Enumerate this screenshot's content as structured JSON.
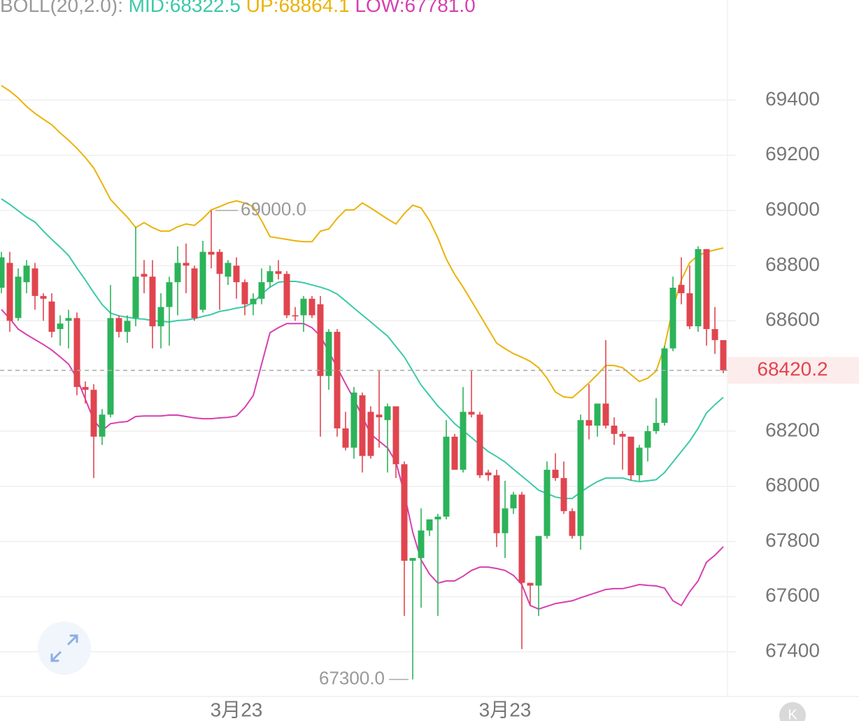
{
  "chart_data": {
    "type": "candlestick",
    "indicator": {
      "title": "BOLL(20,2.0):",
      "items": [
        {
          "text": "MID:68322.5",
          "color": "#3cc9a8"
        },
        {
          "text": "UP:68864.1",
          "color": "#eab308"
        },
        {
          "text": "LOW:67781.0",
          "color": "#d63fb0"
        }
      ]
    },
    "ylim": [
      67238,
      69763
    ],
    "yticks": [
      67400,
      67600,
      67800,
      68000,
      68200,
      68400,
      68600,
      68800,
      69000,
      69200,
      69400
    ],
    "grid": true,
    "up_color": "#2cb35a",
    "down_color": "#e0454f",
    "categories": [
      null,
      null,
      null,
      null,
      null,
      null,
      null,
      null,
      null,
      null,
      null,
      null,
      null,
      null,
      null,
      null,
      null,
      null,
      null,
      null,
      null,
      null,
      null,
      null,
      null,
      null,
      null,
      null,
      "3月23",
      null,
      null,
      null,
      null,
      null,
      null,
      null,
      null,
      null,
      null,
      null,
      null,
      null,
      null,
      null,
      null,
      null,
      null,
      null,
      null,
      null,
      null,
      null,
      null,
      null,
      null,
      null,
      null,
      null,
      null,
      null,
      "3月23",
      null,
      null,
      null,
      null,
      null,
      null,
      null,
      null,
      null,
      null,
      null,
      null,
      null,
      null,
      null,
      null,
      null,
      null,
      null,
      null,
      null,
      null,
      null,
      null,
      null,
      null
    ],
    "ohlc": [
      [
        68720,
        68850,
        68700,
        68830
      ],
      [
        68810,
        68850,
        68560,
        68600
      ],
      [
        68610,
        68790,
        68600,
        68760
      ],
      [
        68740,
        68820,
        68700,
        68800
      ],
      [
        68790,
        68810,
        68640,
        68690
      ],
      [
        68690,
        68700,
        68600,
        68680
      ],
      [
        68670,
        68700,
        68540,
        68560
      ],
      [
        68570,
        68620,
        68510,
        68590
      ],
      [
        68600,
        68640,
        68500,
        68610
      ],
      [
        68610,
        68630,
        68330,
        68360
      ],
      [
        68360,
        68380,
        68300,
        68350
      ],
      [
        68350,
        68370,
        68030,
        68180
      ],
      [
        68180,
        68280,
        68150,
        68260
      ],
      [
        68260,
        68730,
        68250,
        68610
      ],
      [
        68610,
        68620,
        68540,
        68560
      ],
      [
        68560,
        68620,
        68520,
        68600
      ],
      [
        68610,
        68940,
        68580,
        68760
      ],
      [
        68770,
        68820,
        68700,
        68760
      ],
      [
        68760,
        68820,
        68500,
        68580
      ],
      [
        68580,
        68700,
        68500,
        68650
      ],
      [
        68650,
        68760,
        68510,
        68740
      ],
      [
        68740,
        68870,
        68620,
        68810
      ],
      [
        68810,
        68880,
        68700,
        68800
      ],
      [
        68790,
        68800,
        68600,
        68610
      ],
      [
        68640,
        68890,
        68630,
        68850
      ],
      [
        68850,
        69000,
        68790,
        68840
      ],
      [
        68850,
        68860,
        68640,
        68770
      ],
      [
        68760,
        68820,
        68730,
        68810
      ],
      [
        68800,
        68830,
        68680,
        68740
      ],
      [
        68740,
        68750,
        68620,
        68660
      ],
      [
        68660,
        68700,
        68620,
        68680
      ],
      [
        68680,
        68790,
        68660,
        68740
      ],
      [
        68740,
        68800,
        68720,
        68780
      ],
      [
        68780,
        68820,
        68750,
        68770
      ],
      [
        68770,
        68780,
        68610,
        68620
      ],
      [
        68620,
        68650,
        68600,
        68618
      ],
      [
        68620,
        68690,
        68560,
        68680
      ],
      [
        68680,
        68690,
        68610,
        68620
      ],
      [
        68660,
        68690,
        68180,
        68400
      ],
      [
        68400,
        68570,
        68350,
        68560
      ],
      [
        68560,
        68570,
        68180,
        68210
      ],
      [
        68210,
        68270,
        68130,
        68140
      ],
      [
        68140,
        68360,
        68100,
        68340
      ],
      [
        68330,
        68340,
        68050,
        68110
      ],
      [
        68270,
        68290,
        68100,
        68110
      ],
      [
        68260,
        68420,
        68140,
        68250
      ],
      [
        68240,
        68300,
        68050,
        68290
      ],
      [
        68290,
        68290,
        68030,
        68080
      ],
      [
        68080,
        68090,
        67530,
        67730
      ],
      [
        67730,
        67740,
        67300,
        67740
      ],
      [
        67740,
        67920,
        67560,
        67840
      ],
      [
        67840,
        67880,
        67820,
        67880
      ],
      [
        67880,
        67900,
        67530,
        67890
      ],
      [
        67890,
        68240,
        67880,
        68180
      ],
      [
        68180,
        68190,
        68060,
        68060
      ],
      [
        68060,
        68360,
        68050,
        68270
      ],
      [
        68270,
        68420,
        68250,
        68260
      ],
      [
        68260,
        68270,
        68030,
        68040
      ],
      [
        68050,
        68060,
        68020,
        68040
      ],
      [
        68040,
        68060,
        67780,
        67830
      ],
      [
        67830,
        68020,
        67740,
        67920
      ],
      [
        67920,
        67980,
        67900,
        67970
      ],
      [
        67970,
        67980,
        67410,
        67650
      ],
      [
        67650,
        67650,
        67570,
        67640
      ],
      [
        67640,
        67820,
        67530,
        67820
      ],
      [
        67820,
        68090,
        67810,
        68060
      ],
      [
        68060,
        68120,
        68020,
        68030
      ],
      [
        68030,
        68090,
        67900,
        67910
      ],
      [
        67910,
        67920,
        67810,
        67820
      ],
      [
        67820,
        68260,
        67770,
        68240
      ],
      [
        68240,
        68370,
        68170,
        68220
      ],
      [
        68220,
        68300,
        68180,
        68300
      ],
      [
        68300,
        68530,
        68210,
        68220
      ],
      [
        68220,
        68250,
        68150,
        68190
      ],
      [
        68190,
        68200,
        68060,
        68180
      ],
      [
        68180,
        68180,
        68020,
        68040
      ],
      [
        68040,
        68150,
        68020,
        68140
      ],
      [
        68140,
        68220,
        68090,
        68200
      ],
      [
        68200,
        68320,
        68190,
        68230
      ],
      [
        68230,
        68510,
        68220,
        68500
      ],
      [
        68500,
        68760,
        68490,
        68720
      ],
      [
        68730,
        68830,
        68660,
        68700
      ],
      [
        68700,
        68800,
        68570,
        68580
      ],
      [
        68580,
        68870,
        68560,
        68860
      ],
      [
        68860,
        68860,
        68510,
        68570
      ],
      [
        68570,
        68650,
        68480,
        68530
      ],
      [
        68530,
        68530,
        68410,
        68420.2
      ]
    ],
    "bands": [
      {
        "color": "#3cc9a8",
        "values": [
          69042,
          69022,
          68999,
          68976,
          68958,
          68925,
          68895,
          68867,
          68837,
          68791,
          68748,
          68702,
          68659,
          68628,
          68618,
          68613,
          68608,
          68606,
          68601,
          68598,
          68596,
          68601,
          68603,
          68608,
          68616,
          68623,
          68634,
          68639,
          68646,
          68651,
          68666,
          68697,
          68722,
          68740,
          68743,
          68743,
          68738,
          68730,
          68722,
          68712,
          68697,
          68672,
          68646,
          68621,
          68596,
          68570,
          68545,
          68507,
          68469,
          68418,
          68367,
          68329,
          68291,
          68260,
          68227,
          68202,
          68177,
          68151,
          68126,
          68108,
          68088,
          68062,
          68037,
          68012,
          67986,
          67974,
          67961,
          67956,
          67956,
          67979,
          67999,
          68017,
          68030,
          68030,
          68030,
          68022,
          68017,
          68020,
          68024,
          68050,
          68088,
          68126,
          68164,
          68210,
          68266,
          68296,
          68322.5
        ]
      },
      {
        "color": "#eab308",
        "values": [
          69453,
          69433,
          69408,
          69377,
          69352,
          69331,
          69311,
          69281,
          69255,
          69225,
          69192,
          69154,
          69098,
          69040,
          69007,
          68976,
          68938,
          68956,
          68938,
          68925,
          68925,
          68941,
          68951,
          68946,
          68971,
          69002,
          69014,
          69027,
          69035,
          69027,
          69014,
          68963,
          68905,
          68900,
          68895,
          68890,
          68887,
          68887,
          68925,
          68933,
          68971,
          69002,
          69002,
          69027,
          69009,
          68989,
          68969,
          68951,
          68989,
          69019,
          69009,
          68963,
          68900,
          68824,
          68768,
          68722,
          68672,
          68621,
          68570,
          68519,
          68499,
          68481,
          68468,
          68453,
          68430,
          68392,
          68342,
          68324,
          68321,
          68347,
          68375,
          68405,
          68438,
          68438,
          68430,
          68405,
          68380,
          68392,
          68418,
          68507,
          68646,
          68748,
          68811,
          68837,
          68849,
          68857,
          68864.1
        ]
      },
      {
        "color": "#d63fb0",
        "values": [
          68641,
          68608,
          68570,
          68550,
          68532,
          68514,
          68494,
          68469,
          68443,
          68392,
          68316,
          68240,
          68202,
          68227,
          68232,
          68235,
          68253,
          68255,
          68255,
          68255,
          68258,
          68258,
          68253,
          68248,
          68245,
          68245,
          68248,
          68250,
          68255,
          68286,
          68329,
          68443,
          68557,
          68575,
          68590,
          68590,
          68590,
          68575,
          68545,
          68489,
          68430,
          68372,
          68316,
          68253,
          68189,
          68164,
          68139,
          68088,
          67974,
          67834,
          67733,
          67682,
          67649,
          67657,
          67657,
          67674,
          67695,
          67707,
          67707,
          67702,
          67695,
          67677,
          67644,
          67568,
          67555,
          67565,
          67575,
          67580,
          67585,
          67596,
          67606,
          67616,
          67626,
          67629,
          67629,
          67636,
          67644,
          67641,
          67639,
          67631,
          67585,
          67568,
          67618,
          67657,
          67725,
          67750,
          67781.0
        ]
      }
    ],
    "high_marker": {
      "value": 69000,
      "label": "69000.0"
    },
    "low_marker": {
      "value": 67300,
      "label": "67300.0"
    },
    "last_price": 68420.2,
    "corner_badge": "K"
  }
}
